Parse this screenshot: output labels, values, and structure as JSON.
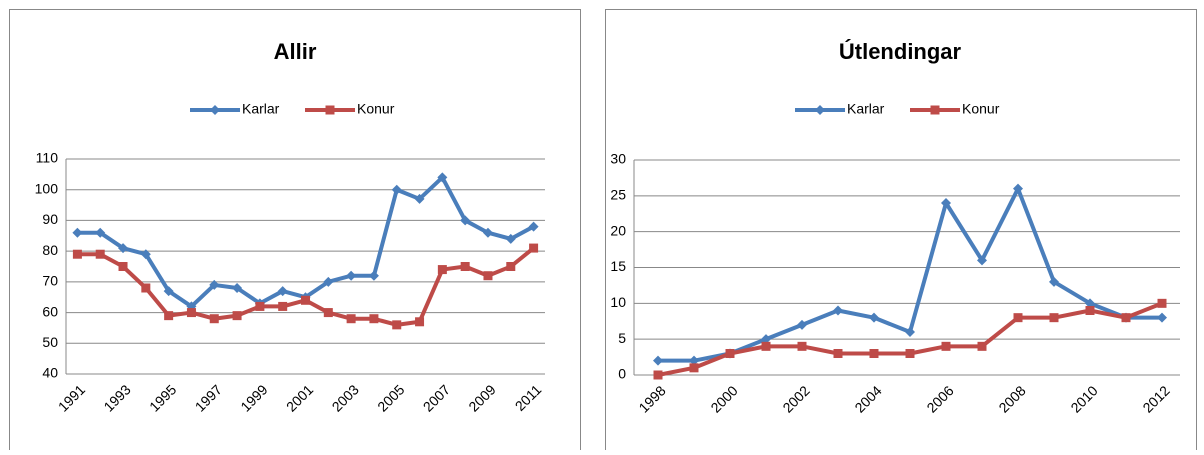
{
  "chart_data": [
    {
      "type": "line",
      "title": "Allir",
      "categories": [
        "1991",
        null,
        "1993",
        null,
        "1995",
        null,
        "1997",
        null,
        "1999",
        null,
        "2001",
        null,
        "2003",
        null,
        "2005",
        null,
        "2007",
        null,
        "2009",
        null,
        "2011"
      ],
      "series": [
        {
          "name": "Karlar",
          "color": "#4a7ebb",
          "values": [
            86,
            86,
            81,
            79,
            67,
            62,
            69,
            68,
            63,
            67,
            65,
            70,
            72,
            72,
            100,
            97,
            104,
            90,
            86,
            84,
            88
          ]
        },
        {
          "name": "Konur",
          "color": "#be4b48",
          "values": [
            79,
            79,
            75,
            68,
            59,
            60,
            58,
            59,
            62,
            62,
            64,
            60,
            58,
            58,
            56,
            57,
            74,
            75,
            72,
            75,
            81
          ]
        }
      ],
      "ylim": [
        40,
        110
      ],
      "yticks": [
        40,
        50,
        60,
        70,
        80,
        90,
        100,
        110
      ],
      "grid": true,
      "legend": "top"
    },
    {
      "type": "line",
      "title": "Útlendingar",
      "categories": [
        "1998",
        null,
        "2000",
        null,
        "2002",
        null,
        "2004",
        null,
        "2006",
        null,
        "2008",
        null,
        "2010",
        null,
        "2012"
      ],
      "series": [
        {
          "name": "Karlar",
          "color": "#4a7ebb",
          "values": [
            2,
            2,
            3,
            5,
            7,
            9,
            8,
            6,
            24,
            16,
            26,
            13,
            10,
            8,
            8
          ]
        },
        {
          "name": "Konur",
          "color": "#be4b48",
          "values": [
            0,
            1,
            3,
            4,
            4,
            3,
            3,
            3,
            4,
            4,
            8,
            8,
            9,
            8,
            10
          ]
        }
      ],
      "ylim": [
        0,
        30
      ],
      "yticks": [
        0,
        5,
        10,
        15,
        20,
        25,
        30
      ],
      "grid": true,
      "legend": "top"
    }
  ]
}
